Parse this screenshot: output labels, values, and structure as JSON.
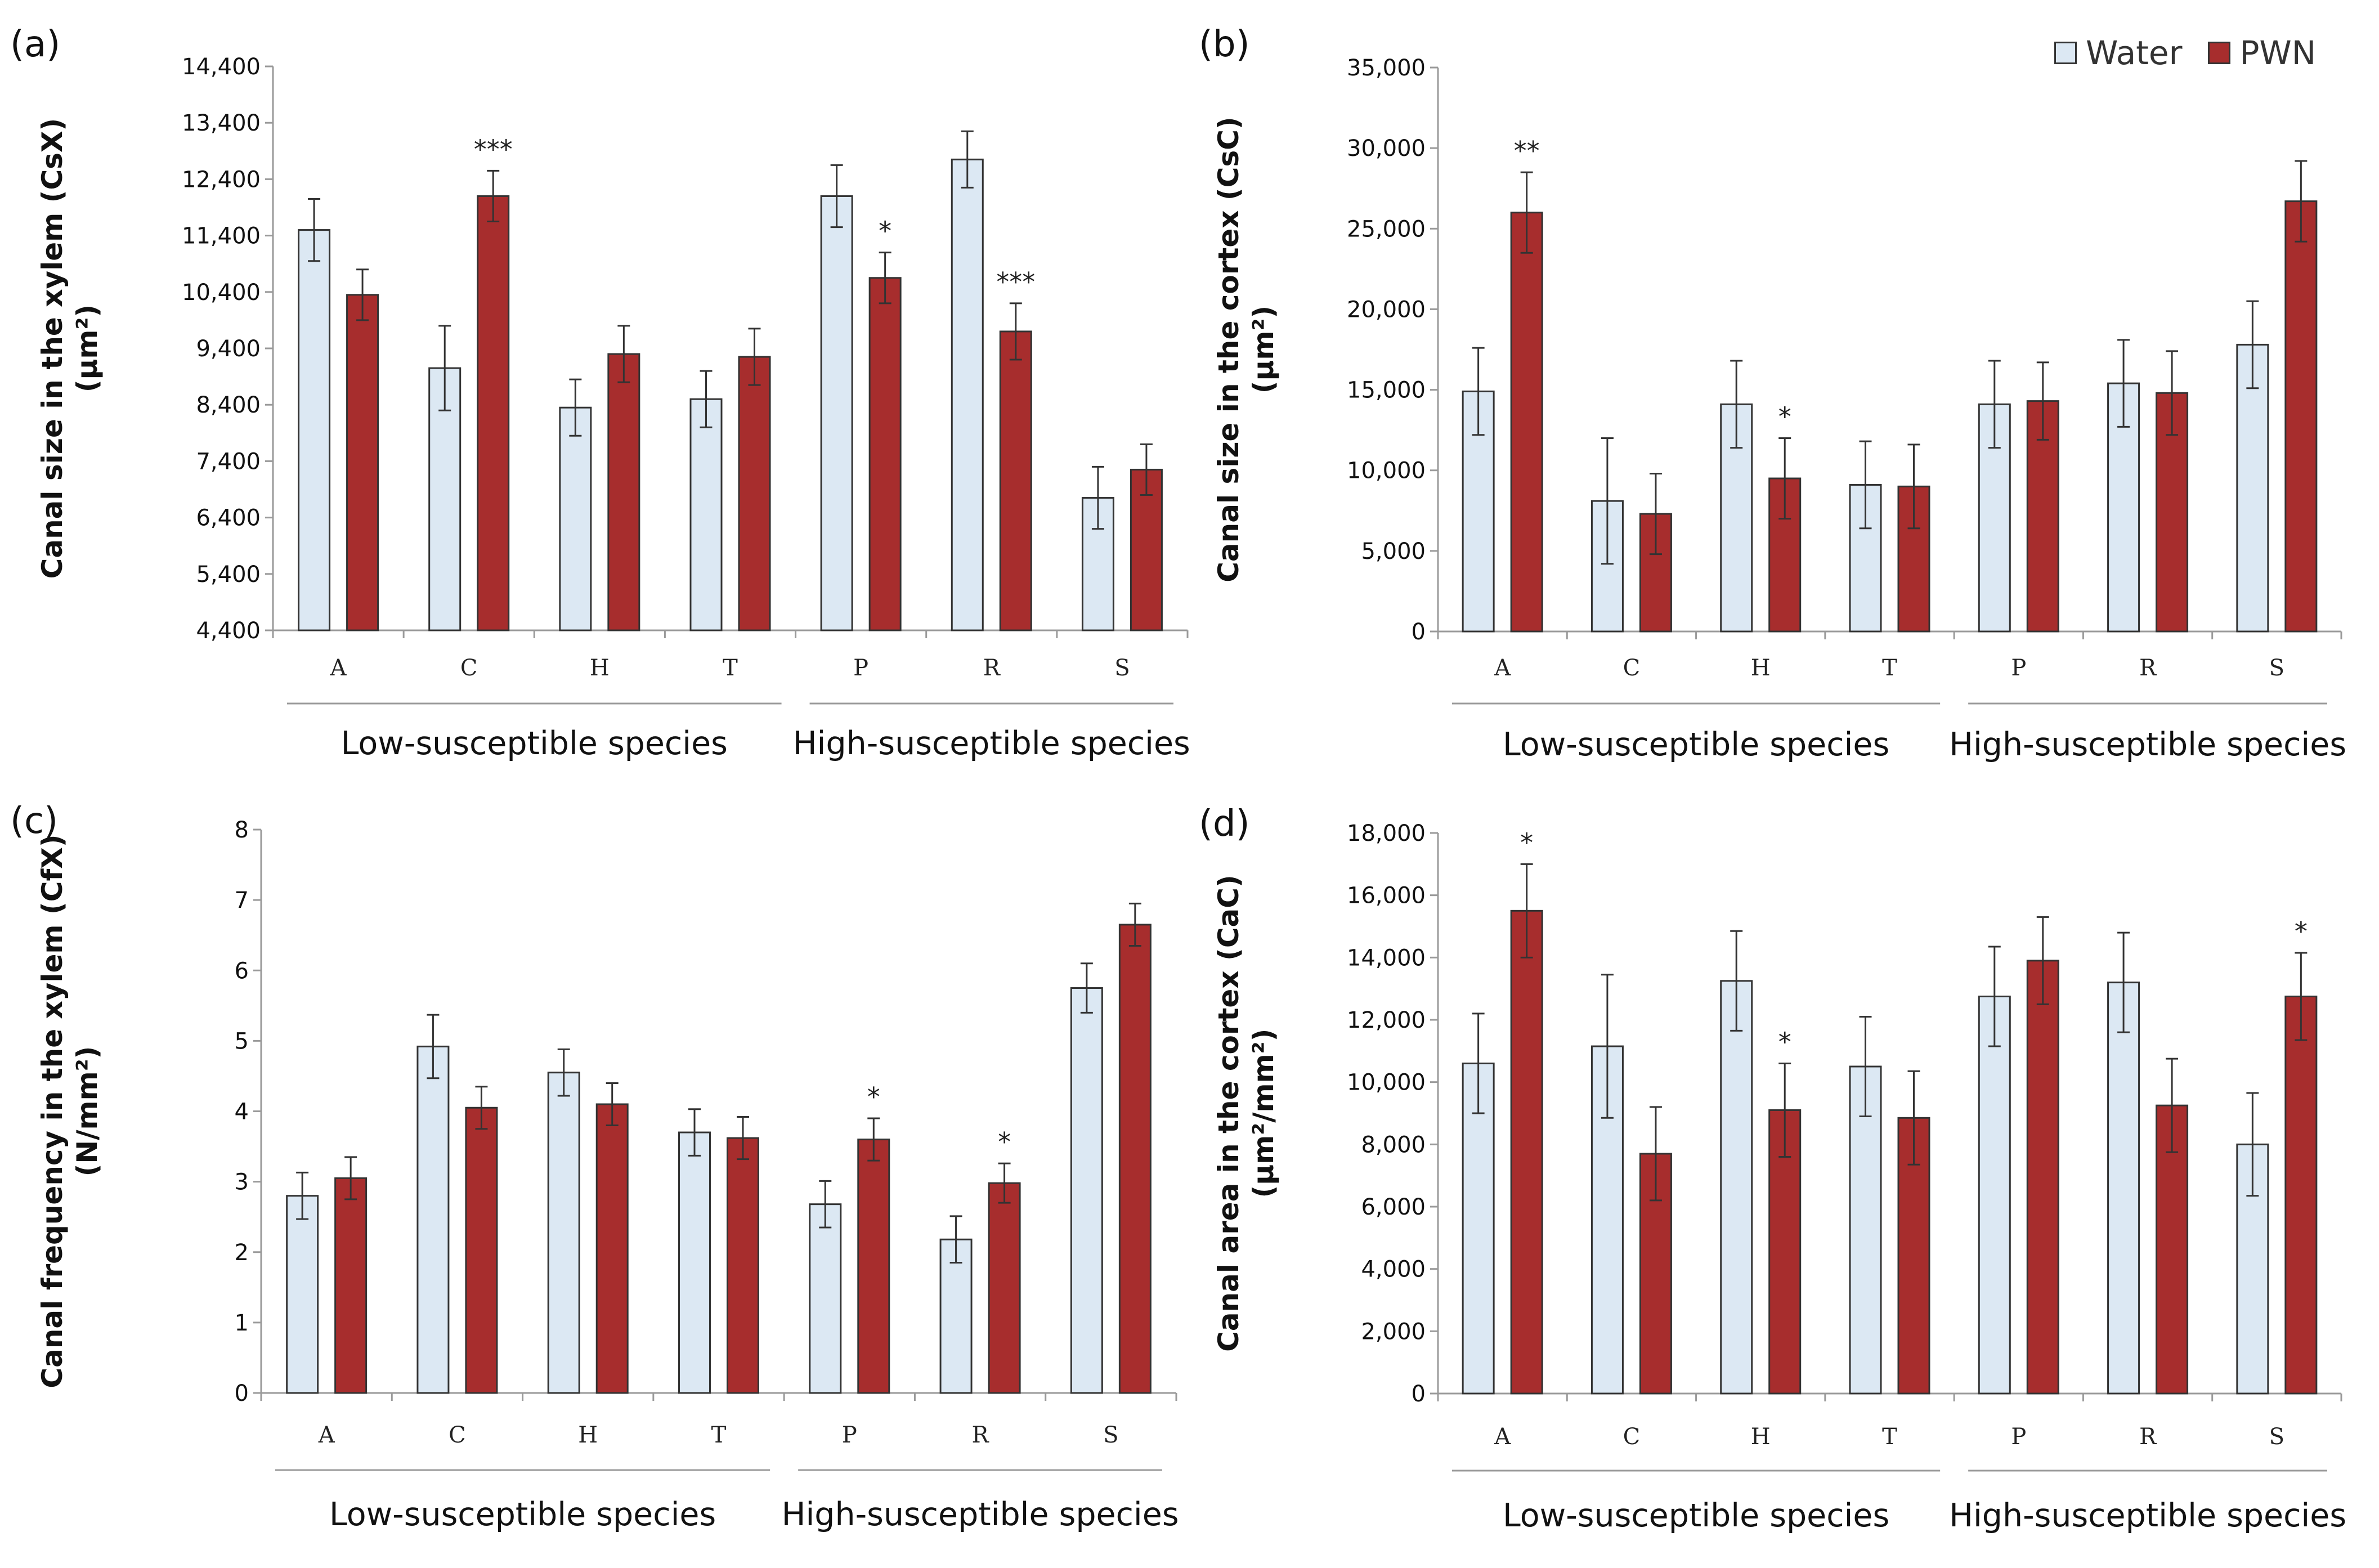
{
  "colors": {
    "water": "#dce8f3",
    "pwn": "#a72d2d",
    "outline": "#333333",
    "axis": "#9a9a9a"
  },
  "legend": [
    {
      "name": "Water",
      "color": "#dce8f3"
    },
    {
      "name": "PWN",
      "color": "#a72d2d"
    }
  ],
  "chart_data": [
    {
      "type": "bar",
      "panel": "(a)",
      "categories": [
        "A",
        "C",
        "H",
        "T",
        "P",
        "R",
        "S"
      ],
      "series": [
        {
          "name": "Water",
          "values": [
            11500,
            9050,
            8350,
            8500,
            12100,
            12750,
            6750
          ],
          "errors": [
            550,
            750,
            500,
            500,
            550,
            500,
            550
          ]
        },
        {
          "name": "PWN",
          "values": [
            10350,
            12100,
            9300,
            9250,
            10650,
            9700,
            7250
          ],
          "errors": [
            450,
            450,
            500,
            500,
            450,
            500,
            450
          ]
        }
      ],
      "significance": [
        "",
        "***",
        "",
        "",
        "*",
        "***",
        ""
      ],
      "ylim": [
        4400,
        14400
      ],
      "yticks": [
        4400,
        5400,
        6400,
        7400,
        8400,
        9400,
        10400,
        11400,
        12400,
        13400,
        14400
      ],
      "ytick_labels": [
        "4,400",
        "5,400",
        "6,400",
        "7,400",
        "8,400",
        "9,400",
        "10,400",
        "11,400",
        "12,400",
        "13,400",
        "14,400"
      ],
      "ylabel_line1": "Canal size in the xylem (CsX)",
      "ylabel_line2": "(µm²)",
      "groups": [
        {
          "label": "Low-susceptible species",
          "from": 0,
          "to": 3
        },
        {
          "label": "High-susceptible species",
          "from": 4,
          "to": 6
        }
      ]
    },
    {
      "type": "bar",
      "panel": "(b)",
      "categories": [
        "A",
        "C",
        "H",
        "T",
        "P",
        "R",
        "S"
      ],
      "series": [
        {
          "name": "Water",
          "values": [
            14900,
            8100,
            14100,
            9100,
            14100,
            15400,
            17800
          ],
          "errors": [
            2700,
            3900,
            2700,
            2700,
            2700,
            2700,
            2700
          ]
        },
        {
          "name": "PWN",
          "values": [
            26000,
            7300,
            9500,
            9000,
            14300,
            14800,
            26700
          ],
          "errors": [
            2500,
            2500,
            2500,
            2600,
            2400,
            2600,
            2500
          ]
        }
      ],
      "significance": [
        "**",
        "",
        "*",
        "",
        "",
        "",
        ""
      ],
      "ylim": [
        0,
        35000
      ],
      "yticks": [
        0,
        5000,
        10000,
        15000,
        20000,
        25000,
        30000,
        35000
      ],
      "ytick_labels": [
        "0",
        "5,000",
        "10,000",
        "15,000",
        "20,000",
        "25,000",
        "30,000",
        "35,000"
      ],
      "ylabel_line1": "Canal size in the cortex (CsC)",
      "ylabel_line2": "(µm²)",
      "groups": [
        {
          "label": "Low-susceptible species",
          "from": 0,
          "to": 3
        },
        {
          "label": "High-susceptible species",
          "from": 4,
          "to": 6
        }
      ]
    },
    {
      "type": "bar",
      "panel": "(c)",
      "categories": [
        "A",
        "C",
        "H",
        "T",
        "P",
        "R",
        "S"
      ],
      "series": [
        {
          "name": "Water",
          "values": [
            2.8,
            4.92,
            4.55,
            3.7,
            2.68,
            2.18,
            5.75
          ],
          "errors": [
            0.33,
            0.45,
            0.33,
            0.33,
            0.33,
            0.33,
            0.35
          ]
        },
        {
          "name": "PWN",
          "values": [
            3.05,
            4.05,
            4.1,
            3.62,
            3.6,
            2.98,
            6.65
          ],
          "errors": [
            0.3,
            0.3,
            0.3,
            0.3,
            0.3,
            0.28,
            0.3
          ]
        }
      ],
      "significance": [
        "",
        "",
        "",
        "",
        "*",
        "*",
        ""
      ],
      "ylim": [
        0,
        8
      ],
      "yticks": [
        0,
        1,
        2,
        3,
        4,
        5,
        6,
        7,
        8
      ],
      "ytick_labels": [
        "0",
        "1",
        "2",
        "3",
        "4",
        "5",
        "6",
        "7",
        "8"
      ],
      "ylabel_line1": "Canal frequency in the xylem (CfX)",
      "ylabel_line2": "(N/mm²)",
      "groups": [
        {
          "label": "Low-susceptible species",
          "from": 0,
          "to": 3
        },
        {
          "label": "High-susceptible species",
          "from": 4,
          "to": 6
        }
      ]
    },
    {
      "type": "bar",
      "panel": "(d)",
      "categories": [
        "A",
        "C",
        "H",
        "T",
        "P",
        "R",
        "S"
      ],
      "series": [
        {
          "name": "Water",
          "values": [
            10600,
            11150,
            13250,
            10500,
            12750,
            13200,
            8000
          ],
          "errors": [
            1600,
            2300,
            1600,
            1600,
            1600,
            1600,
            1650
          ]
        },
        {
          "name": "PWN",
          "values": [
            15500,
            7700,
            9100,
            8850,
            13900,
            9250,
            12750
          ],
          "errors": [
            1500,
            1500,
            1500,
            1500,
            1400,
            1500,
            1400
          ]
        }
      ],
      "significance": [
        "*",
        "",
        "*",
        "",
        "",
        "",
        "*"
      ],
      "ylim": [
        0,
        18000
      ],
      "yticks": [
        0,
        2000,
        4000,
        6000,
        8000,
        10000,
        12000,
        14000,
        16000,
        18000
      ],
      "ytick_labels": [
        "0",
        "2,000",
        "4,000",
        "6,000",
        "8,000",
        "10,000",
        "12,000",
        "14,000",
        "16,000",
        "18,000"
      ],
      "ylabel_line1": "Canal area in the cortex (CaC)",
      "ylabel_line2": "(µm²/mm²)",
      "groups": [
        {
          "label": "Low-susceptible species",
          "from": 0,
          "to": 3
        },
        {
          "label": "High-susceptible species",
          "from": 4,
          "to": 6
        }
      ]
    }
  ]
}
